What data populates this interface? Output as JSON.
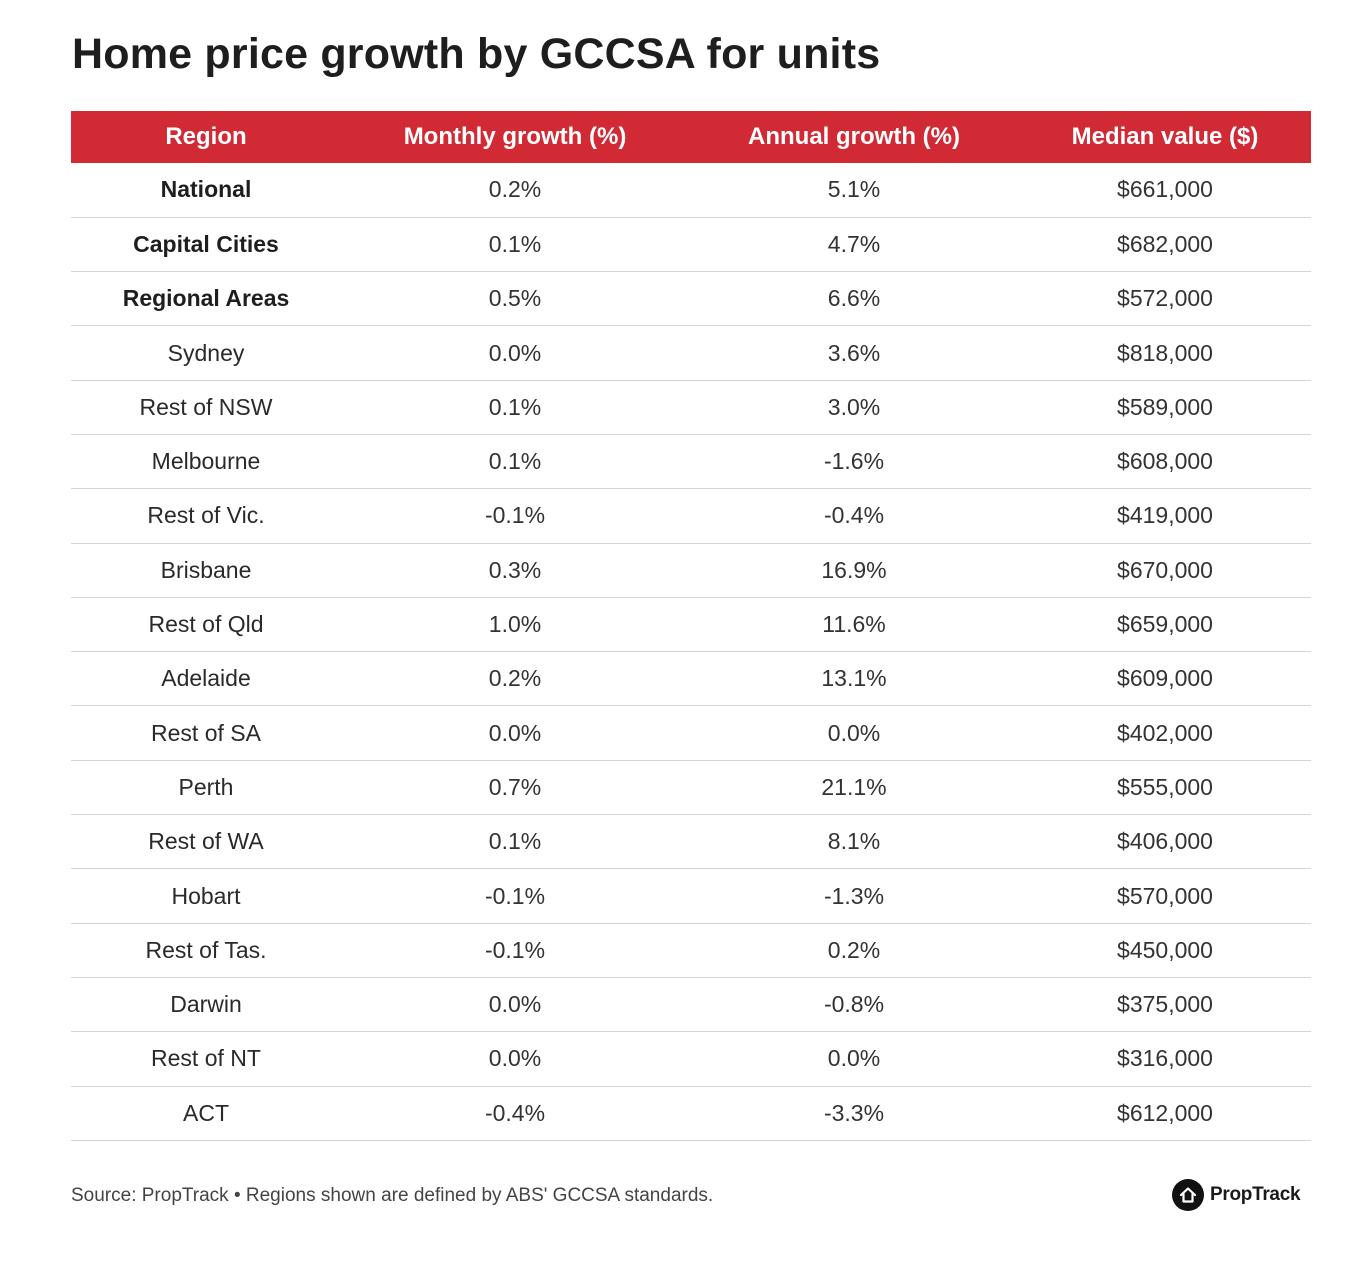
{
  "chart_data": {
    "type": "table",
    "title": "Home price growth by GCCSA for units",
    "columns": [
      "Region",
      "Monthly growth (%)",
      "Annual growth (%)",
      "Median value ($)"
    ],
    "rows": [
      {
        "region": "National",
        "monthly": "0.2%",
        "annual": "5.1%",
        "median": "$661,000",
        "bold": true
      },
      {
        "region": "Capital Cities",
        "monthly": "0.1%",
        "annual": "4.7%",
        "median": "$682,000",
        "bold": true
      },
      {
        "region": "Regional Areas",
        "monthly": "0.5%",
        "annual": "6.6%",
        "median": "$572,000",
        "bold": true
      },
      {
        "region": "Sydney",
        "monthly": "0.0%",
        "annual": "3.6%",
        "median": "$818,000",
        "bold": false
      },
      {
        "region": "Rest of NSW",
        "monthly": "0.1%",
        "annual": "3.0%",
        "median": "$589,000",
        "bold": false
      },
      {
        "region": "Melbourne",
        "monthly": "0.1%",
        "annual": "-1.6%",
        "median": "$608,000",
        "bold": false
      },
      {
        "region": "Rest of Vic.",
        "monthly": "-0.1%",
        "annual": "-0.4%",
        "median": "$419,000",
        "bold": false
      },
      {
        "region": "Brisbane",
        "monthly": "0.3%",
        "annual": "16.9%",
        "median": "$670,000",
        "bold": false
      },
      {
        "region": "Rest of Qld",
        "monthly": "1.0%",
        "annual": "11.6%",
        "median": "$659,000",
        "bold": false
      },
      {
        "region": "Adelaide",
        "monthly": "0.2%",
        "annual": "13.1%",
        "median": "$609,000",
        "bold": false
      },
      {
        "region": "Rest of SA",
        "monthly": "0.0%",
        "annual": "0.0%",
        "median": "$402,000",
        "bold": false
      },
      {
        "region": "Perth",
        "monthly": "0.7%",
        "annual": "21.1%",
        "median": "$555,000",
        "bold": false
      },
      {
        "region": "Rest of WA",
        "monthly": "0.1%",
        "annual": "8.1%",
        "median": "$406,000",
        "bold": false
      },
      {
        "region": "Hobart",
        "monthly": "-0.1%",
        "annual": "-1.3%",
        "median": "$570,000",
        "bold": false
      },
      {
        "region": "Rest of Tas.",
        "monthly": "-0.1%",
        "annual": "0.2%",
        "median": "$450,000",
        "bold": false
      },
      {
        "region": "Darwin",
        "monthly": "0.0%",
        "annual": "-0.8%",
        "median": "$375,000",
        "bold": false
      },
      {
        "region": "Rest of NT",
        "monthly": "0.0%",
        "annual": "0.0%",
        "median": "$316,000",
        "bold": false
      },
      {
        "region": "ACT",
        "monthly": "-0.4%",
        "annual": "-3.3%",
        "median": "$612,000",
        "bold": false
      }
    ]
  },
  "footer": {
    "source": "Source: PropTrack • Regions shown are defined by ABS' GCCSA standards.",
    "brand": "PropTrack",
    "brand_icon": "house-logo-icon"
  },
  "colors": {
    "header_bg": "#d22a35",
    "header_text": "#ffffff",
    "row_divider": "#d5d5d5"
  }
}
